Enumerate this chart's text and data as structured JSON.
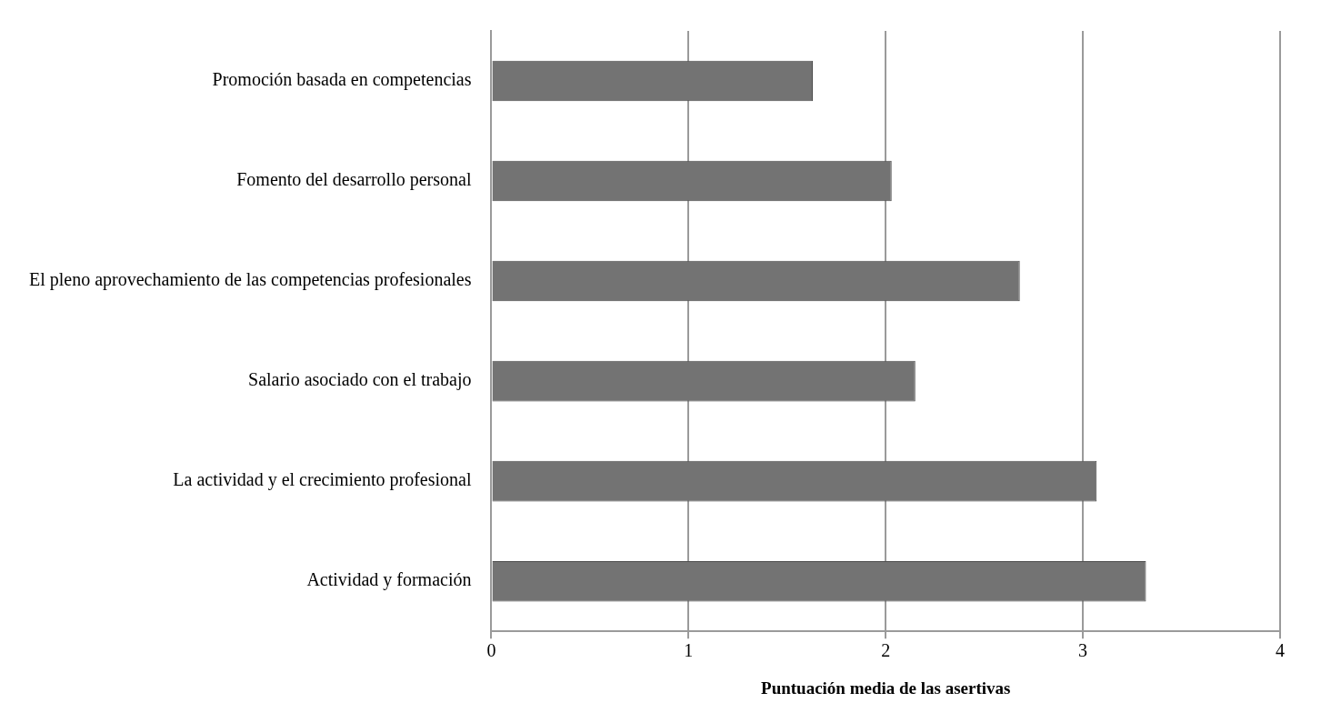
{
  "chart_data": {
    "type": "bar",
    "orientation": "horizontal",
    "categories": [
      "Promoción basada en competencias",
      "Fomento del desarrollo personal",
      "El pleno aprovechamiento de las competencias profesionales",
      "Salario asociado con el trabajo",
      "La actividad y el crecimiento profesional",
      "Actividad y formación"
    ],
    "values": [
      1.63,
      2.03,
      2.68,
      2.15,
      3.07,
      3.32
    ],
    "color": "#737373",
    "xlabel": "Puntuación media de las asertivas",
    "xlim": [
      0,
      4
    ],
    "xticks": [
      0,
      1,
      2,
      3,
      4
    ],
    "grid": "x"
  }
}
